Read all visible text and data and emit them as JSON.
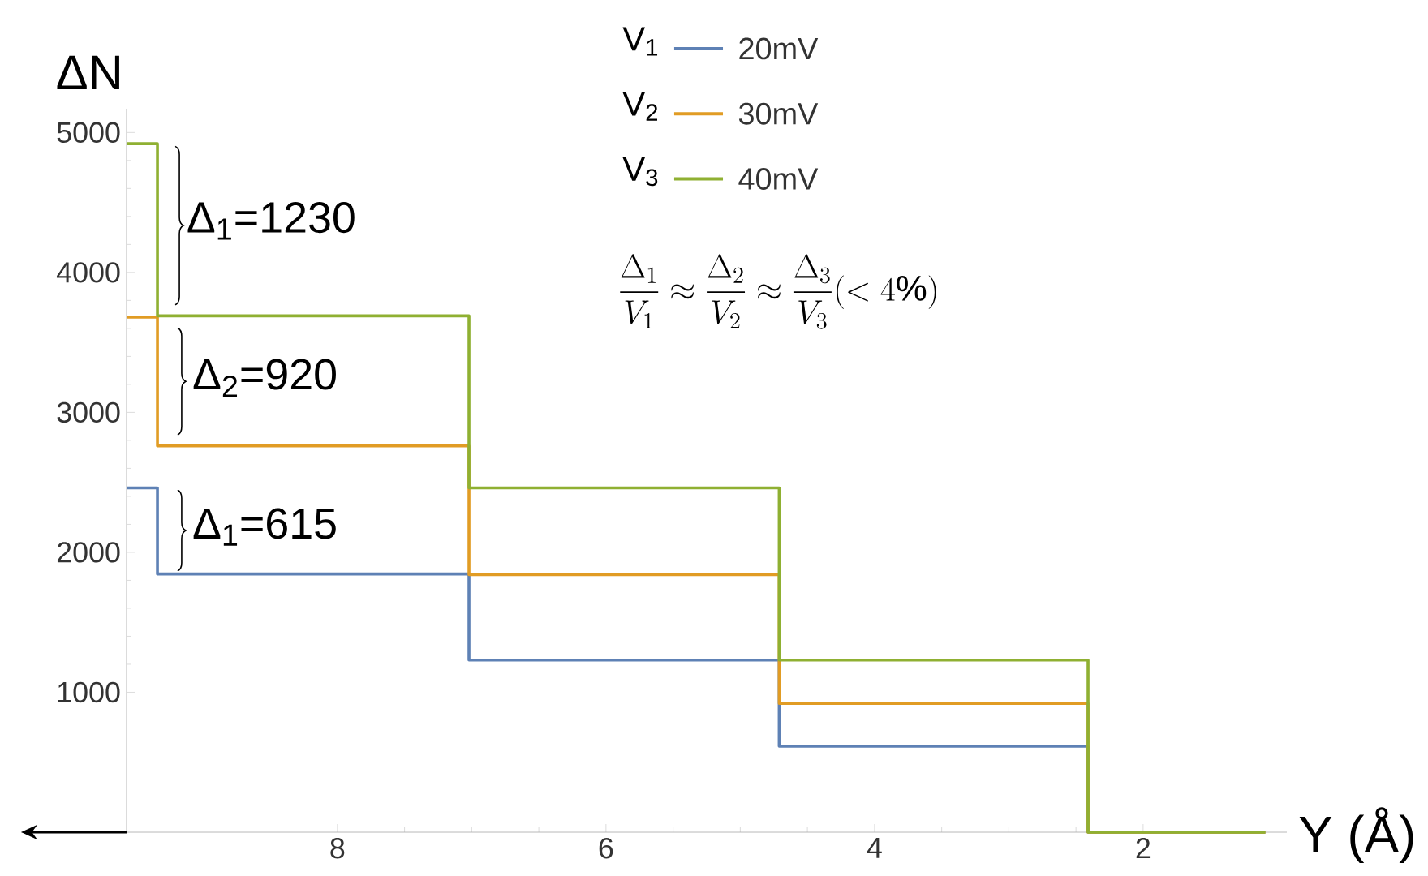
{
  "chart_data": {
    "type": "step",
    "xlabel": "Y (Å)",
    "ylabel": "ΔN",
    "x": [
      9.57,
      9.34,
      7.02,
      4.71,
      2.41,
      1.09
    ],
    "series": [
      {
        "name": "20mV",
        "color": "#5e81b5",
        "values": [
          2460,
          1845,
          1230,
          615,
          0,
          0
        ]
      },
      {
        "name": "30mV",
        "color": "#e19c24",
        "values": [
          3680,
          2760,
          1840,
          920,
          0,
          0
        ]
      },
      {
        "name": "40mV",
        "color": "#8fb032",
        "values": [
          4920,
          3690,
          2460,
          1230,
          0,
          0
        ]
      }
    ],
    "xlim": [
      9.57,
      0.93
    ],
    "xticks": [
      8,
      6,
      4,
      2
    ],
    "ylim": [
      0,
      5170
    ],
    "yticks": [
      1000,
      2000,
      3000,
      4000,
      5000
    ],
    "legend": "top",
    "annotations": [
      "Δ$_{1}$=1230",
      "Δ$_{2}$=920",
      "Δ$_{1}$=615",
      "\\frac{\\Delta_1}{V_1}\\approx\\frac{\\Delta_2}{V_2}\\approx\\frac{\\Delta_3}{V_3}(<4\\%)",
      "V$_{1}$",
      "V$_{2}$",
      "V$_{3}$"
    ]
  }
}
